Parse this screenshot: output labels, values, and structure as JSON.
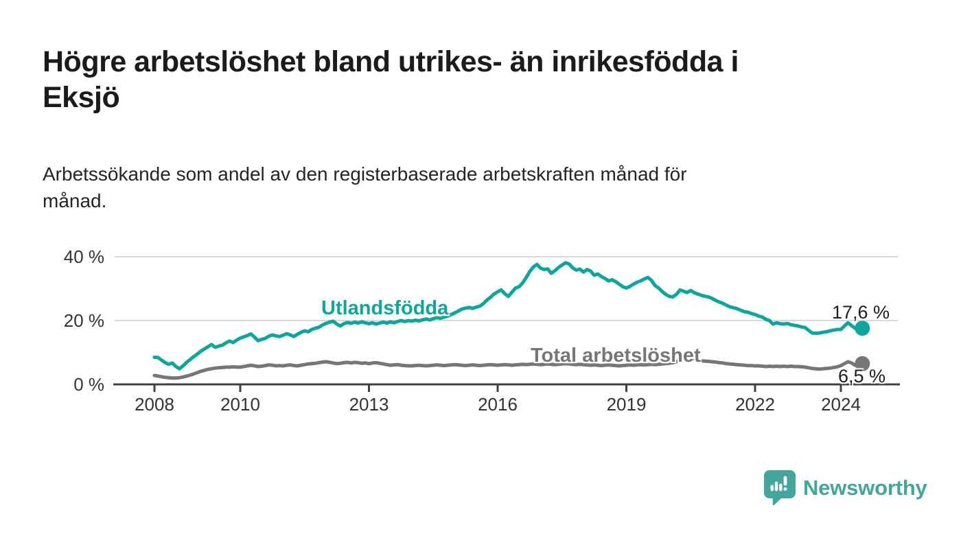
{
  "header": {
    "title_lines": [
      "Högre arbetslöshet bland utrikes- än inrikesfödda i",
      "Eksjö"
    ],
    "subtitle_lines": [
      "Arbetssökande som andel av den registerbaserade arbetskraften månad för",
      "månad."
    ]
  },
  "footer": {
    "brand": "Newsworthy"
  },
  "colors": {
    "accent_teal": "#0fa59c",
    "series_gray": "#76767a",
    "axis": "#404040",
    "grid": "#d9d9d9",
    "text": "#1b1b1b",
    "tick_text": "#333333",
    "logo_teal": "#44a59d"
  },
  "chart_data": {
    "type": "line",
    "title": "Högre arbetslöshet bland utrikes- än inrikesfödda i Eksjö",
    "subtitle": "Arbetssökande som andel av den registerbaserade arbetskraften månad för månad.",
    "xlabel": "",
    "ylabel": "",
    "x_start_year": 2008,
    "x_end": "2024-07",
    "x_step": "monthly",
    "ylim": [
      0,
      43
    ],
    "grid": "horizontal-only",
    "legend": "inline-labels",
    "yticks": [
      {
        "label": "0 %",
        "value": 0
      },
      {
        "label": "20 %",
        "value": 20
      },
      {
        "label": "40 %",
        "value": 40
      }
    ],
    "xticks": [
      {
        "label": "2008",
        "year": 2008
      },
      {
        "label": "2010",
        "year": 2010
      },
      {
        "label": "2013",
        "year": 2013
      },
      {
        "label": "2016",
        "year": 2016
      },
      {
        "label": "2019",
        "year": 2019
      },
      {
        "label": "2022",
        "year": 2022
      },
      {
        "label": "2024",
        "year": 2024
      }
    ],
    "series": [
      {
        "name": "Utlandsfödda",
        "color": "#0fa59c",
        "end_label": "17,6 %",
        "end_value": 17.6,
        "values": [
          8.5,
          8.4,
          7.6,
          6.8,
          6.3,
          6.7,
          5.6,
          4.9,
          5.8,
          6.9,
          7.8,
          8.7,
          9.5,
          10.4,
          11.1,
          11.8,
          12.5,
          11.6,
          12.0,
          12.3,
          13.0,
          13.6,
          13.1,
          13.9,
          14.5,
          14.9,
          15.3,
          15.8,
          14.8,
          13.7,
          14.1,
          14.4,
          15.1,
          15.5,
          15.2,
          15.0,
          15.4,
          15.9,
          15.5,
          15.0,
          15.7,
          16.3,
          16.8,
          16.5,
          17.2,
          17.6,
          17.9,
          18.6,
          19.1,
          19.5,
          19.8,
          18.9,
          18.3,
          19.0,
          19.4,
          19.1,
          19.5,
          19.2,
          19.6,
          19.3,
          19.0,
          19.3,
          18.9,
          19.2,
          19.5,
          19.2,
          19.6,
          19.3,
          19.7,
          20.0,
          19.7,
          20.0,
          19.8,
          20.1,
          19.9,
          20.2,
          20.5,
          20.2,
          20.6,
          20.9,
          20.7,
          21.1,
          21.4,
          21.9,
          22.4,
          23.0,
          23.6,
          23.9,
          24.1,
          23.8,
          24.2,
          24.5,
          25.3,
          26.4,
          27.3,
          28.3,
          29.0,
          29.6,
          28.4,
          27.6,
          28.9,
          30.2,
          30.6,
          31.8,
          33.5,
          35.4,
          36.8,
          37.6,
          36.4,
          36.0,
          36.2,
          34.8,
          35.6,
          36.6,
          37.4,
          38.1,
          37.7,
          36.5,
          35.8,
          36.1,
          35.2,
          36.0,
          35.5,
          34.2,
          34.6,
          33.8,
          33.2,
          32.4,
          32.8,
          32.2,
          31.4,
          30.6,
          30.2,
          30.7,
          31.4,
          32.0,
          32.4,
          33.0,
          33.5,
          32.6,
          31.0,
          30.2,
          29.1,
          28.2,
          27.6,
          27.4,
          28.2,
          29.6,
          29.2,
          28.8,
          29.4,
          28.7,
          28.3,
          27.9,
          27.6,
          27.4,
          26.9,
          26.3,
          25.8,
          25.4,
          24.8,
          24.3,
          24.0,
          23.7,
          23.2,
          22.8,
          22.6,
          22.2,
          21.9,
          21.4,
          21.1,
          20.4,
          20.0,
          18.9,
          19.3,
          19.0,
          18.9,
          19.1,
          18.7,
          18.5,
          18.3,
          18.0,
          17.8,
          16.9,
          16.1,
          16.0,
          16.1,
          16.3,
          16.5,
          16.8,
          17.0,
          17.2,
          17.2,
          18.3,
          19.3,
          18.4,
          17.6,
          16.9,
          17.6
        ]
      },
      {
        "name": "Total arbetslöshet",
        "color": "#76767a",
        "end_label": "6,5 %",
        "end_value": 6.5,
        "values": [
          2.8,
          2.6,
          2.4,
          2.2,
          2.1,
          2.0,
          2.0,
          2.1,
          2.3,
          2.6,
          2.9,
          3.3,
          3.7,
          4.1,
          4.4,
          4.7,
          4.9,
          5.1,
          5.2,
          5.3,
          5.4,
          5.4,
          5.5,
          5.4,
          5.4,
          5.6,
          5.8,
          6.0,
          5.8,
          5.6,
          5.7,
          5.9,
          6.1,
          6.0,
          5.8,
          5.9,
          5.8,
          6.0,
          6.1,
          5.9,
          5.8,
          6.0,
          6.2,
          6.4,
          6.5,
          6.6,
          6.8,
          7.0,
          7.1,
          6.9,
          6.7,
          6.5,
          6.6,
          6.8,
          6.9,
          6.7,
          6.9,
          6.8,
          6.6,
          6.7,
          6.5,
          6.7,
          6.8,
          6.6,
          6.4,
          6.2,
          6.0,
          6.1,
          6.2,
          6.0,
          5.9,
          5.8,
          5.8,
          5.9,
          6.0,
          5.9,
          5.8,
          5.9,
          6.0,
          6.1,
          6.0,
          5.9,
          6.0,
          6.1,
          6.2,
          6.1,
          6.0,
          5.9,
          6.0,
          6.1,
          6.0,
          5.9,
          6.0,
          6.1,
          6.2,
          6.1,
          6.0,
          6.1,
          6.2,
          6.1,
          6.0,
          6.1,
          6.2,
          6.3,
          6.2,
          6.3,
          6.4,
          6.3,
          6.2,
          6.3,
          6.4,
          6.3,
          6.2,
          6.3,
          6.4,
          6.5,
          6.4,
          6.3,
          6.2,
          6.3,
          6.2,
          6.1,
          6.0,
          6.1,
          6.0,
          5.9,
          6.0,
          6.1,
          6.0,
          5.9,
          5.8,
          5.9,
          6.0,
          6.1,
          6.0,
          6.1,
          6.2,
          6.1,
          6.2,
          6.3,
          6.2,
          6.3,
          6.4,
          6.5,
          6.6,
          6.8,
          7.1,
          7.5,
          7.8,
          7.9,
          8.0,
          7.8,
          7.6,
          7.4,
          7.3,
          7.2,
          7.1,
          7.0,
          6.8,
          6.7,
          6.5,
          6.4,
          6.3,
          6.2,
          6.1,
          6.0,
          5.9,
          5.9,
          5.8,
          5.8,
          5.7,
          5.6,
          5.7,
          5.6,
          5.7,
          5.6,
          5.7,
          5.6,
          5.7,
          5.6,
          5.6,
          5.5,
          5.4,
          5.2,
          5.0,
          4.9,
          4.8,
          4.9,
          5.0,
          5.1,
          5.3,
          5.5,
          5.9,
          6.5,
          7.1,
          6.7,
          6.0,
          6.2,
          6.5
        ]
      }
    ]
  }
}
